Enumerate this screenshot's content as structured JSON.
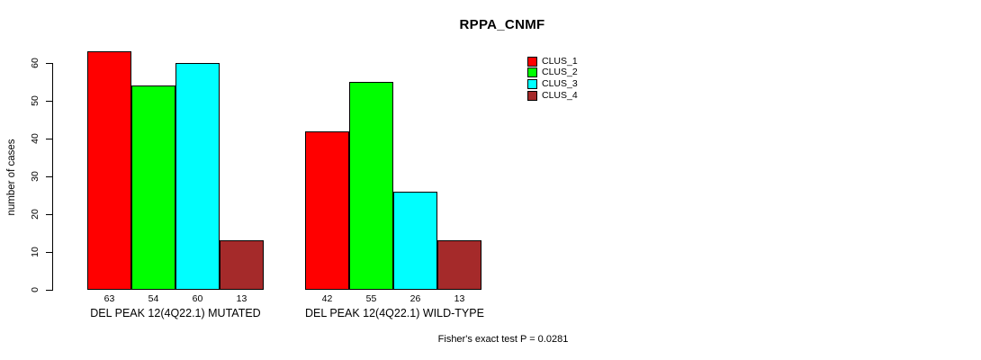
{
  "title": "RPPA_CNMF",
  "footer_annotation": "Fisher's exact test P = 0.0281",
  "colors": {
    "clus_1": "#FF0000",
    "clus_2": "#00FF00",
    "clus_3": "#00FFFF",
    "clus_4": "#A52A2A",
    "axis": "#000000",
    "background": "#FFFFFF"
  },
  "chart_data": {
    "type": "bar",
    "title": "RPPA_CNMF",
    "xlabel": "",
    "ylabel": "number of cases",
    "ylim": [
      0,
      60
    ],
    "yticks": [
      0,
      10,
      20,
      30,
      40,
      50,
      60
    ],
    "grid": false,
    "legend_position": "top-right",
    "categories": [
      "DEL PEAK 12(4Q22.1) MUTATED",
      "DEL PEAK 12(4Q22.1) WILD-TYPE"
    ],
    "series": [
      {
        "name": "CLUS_1",
        "color": "#FF0000",
        "values": [
          63,
          42
        ]
      },
      {
        "name": "CLUS_2",
        "color": "#00FF00",
        "values": [
          54,
          55
        ]
      },
      {
        "name": "CLUS_3",
        "color": "#00FFFF",
        "values": [
          60,
          26
        ]
      },
      {
        "name": "CLUS_4",
        "color": "#A52A2A",
        "values": [
          13,
          13
        ]
      }
    ],
    "bar_value_labels": [
      [
        63,
        54,
        60,
        13
      ],
      [
        42,
        55,
        26,
        13
      ]
    ],
    "annotation": "Fisher's exact test P = 0.0281"
  }
}
